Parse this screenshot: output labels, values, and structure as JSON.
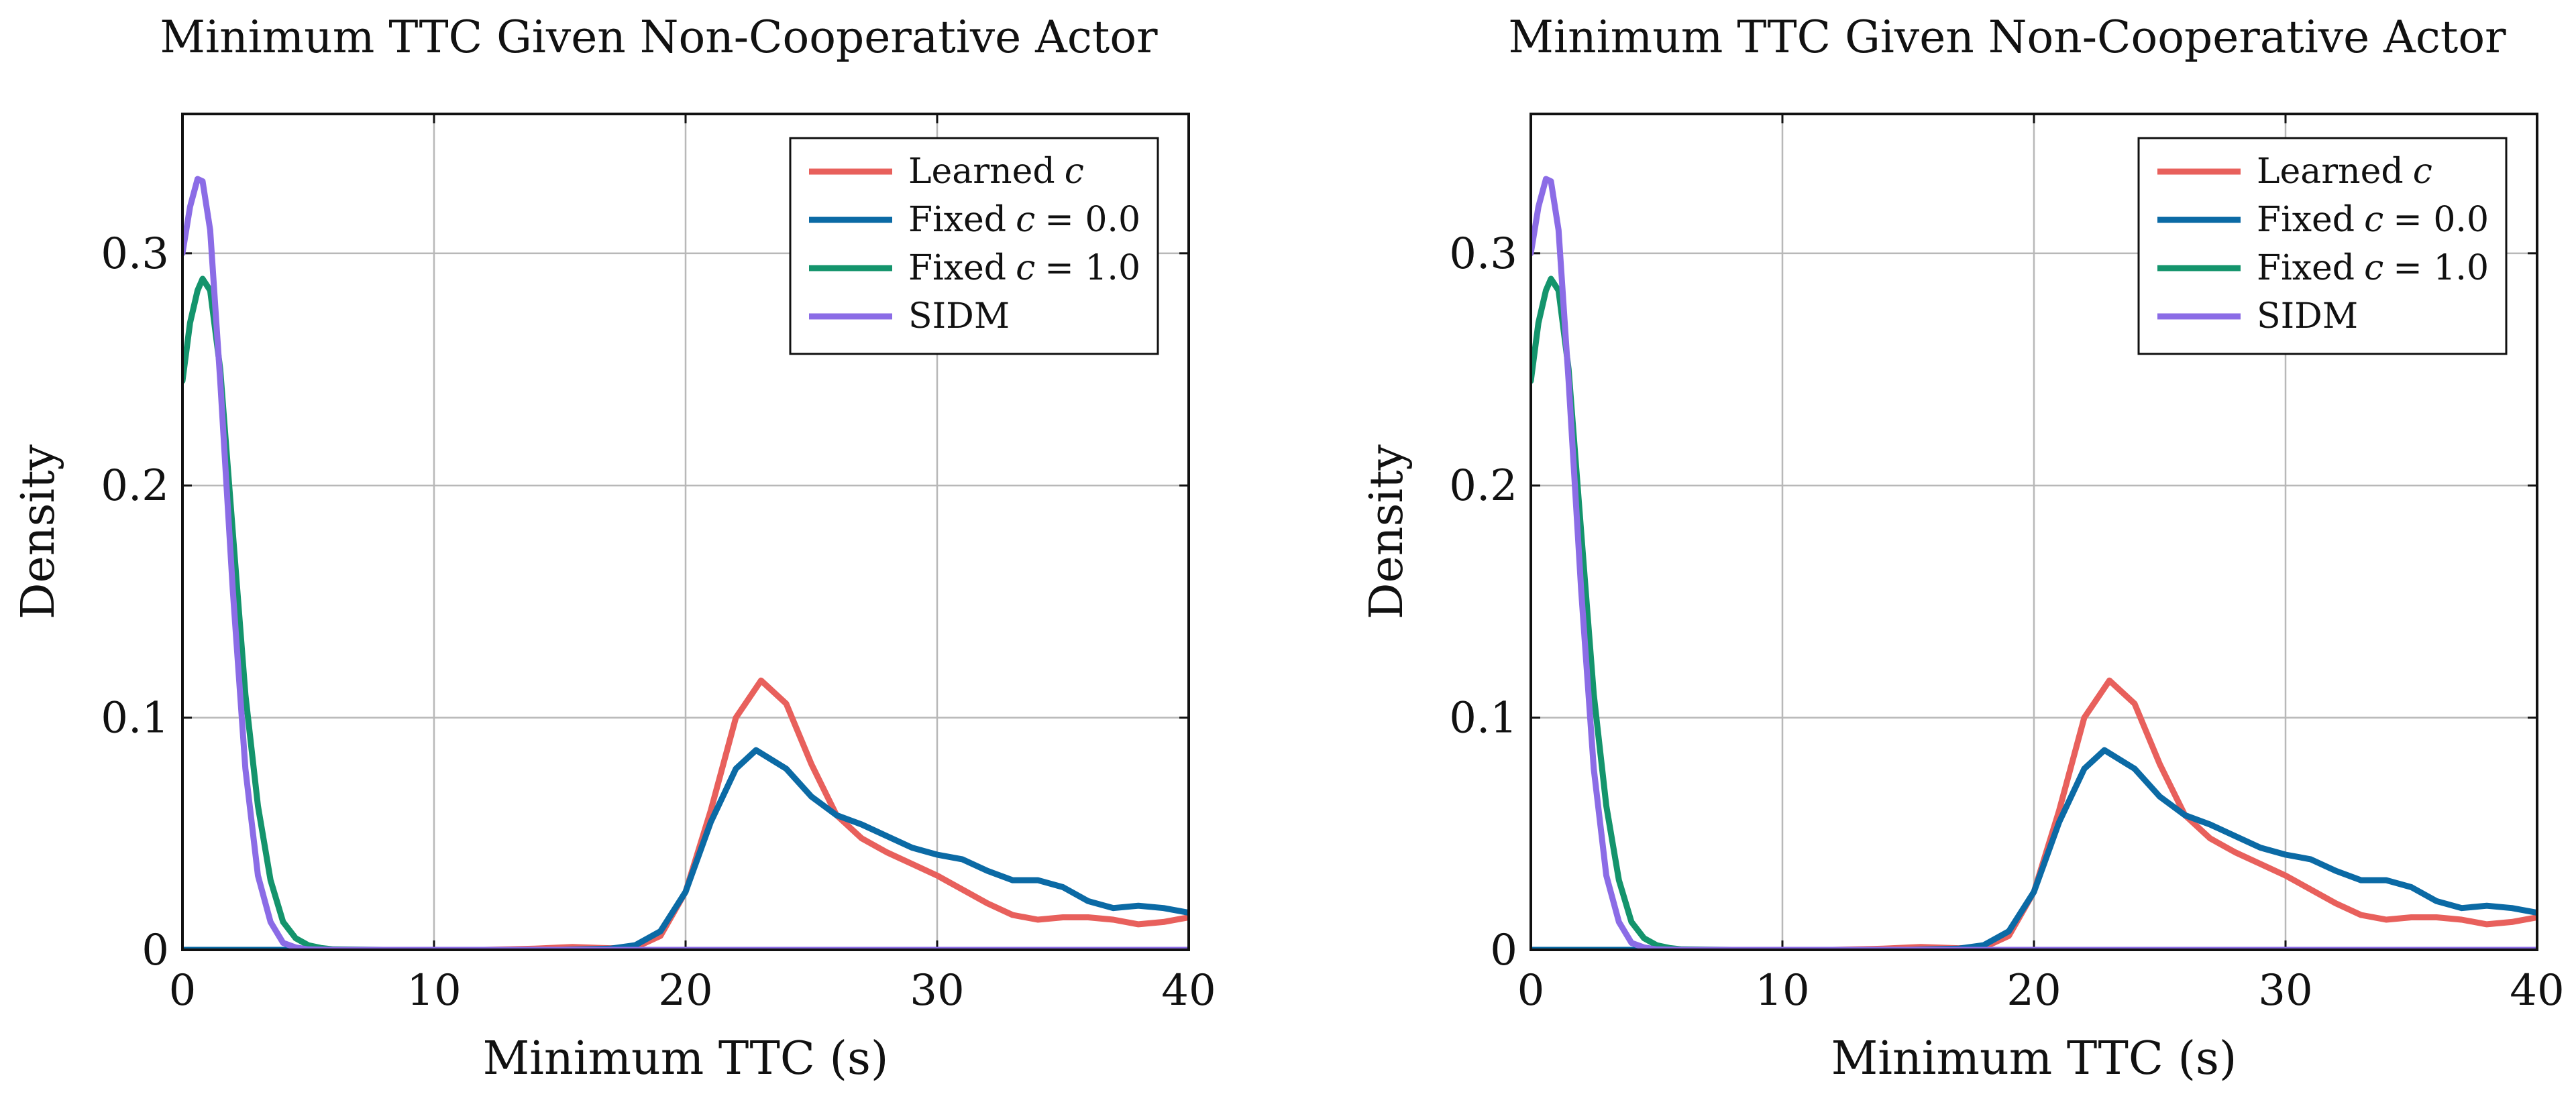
{
  "chart_data": [
    {
      "type": "line",
      "title": "Minimum TTC Given Non-Cooperative Actor",
      "xlabel": "Minimum TTC (s)",
      "ylabel": "Density",
      "xlim": [
        0,
        40
      ],
      "ylim": [
        0,
        0.36
      ],
      "xticks": [
        0,
        10,
        20,
        30,
        40
      ],
      "yticks": [
        0,
        0.1,
        0.2,
        0.3
      ],
      "xtick_labels": [
        "0",
        "10",
        "20",
        "30",
        "40"
      ],
      "ytick_labels": [
        "0",
        "0.1",
        "0.2",
        "0.3"
      ],
      "grid": true,
      "legend_position": "top-right",
      "series": [
        {
          "name": "Learned c",
          "label_main": "Learned",
          "label_var": "c",
          "label_eq": "",
          "color": "#e8605c",
          "points": [
            [
              0,
              0
            ],
            [
              10,
              0
            ],
            [
              12,
              0
            ],
            [
              14,
              0.0005
            ],
            [
              15.5,
              0.0012
            ],
            [
              17,
              0.0007
            ],
            [
              18,
              0.001
            ],
            [
              19,
              0.006
            ],
            [
              20,
              0.025
            ],
            [
              21,
              0.06
            ],
            [
              22,
              0.1
            ],
            [
              23,
              0.116
            ],
            [
              24,
              0.106
            ],
            [
              25,
              0.08
            ],
            [
              26,
              0.058
            ],
            [
              27,
              0.048
            ],
            [
              28,
              0.042
            ],
            [
              29,
              0.037
            ],
            [
              30,
              0.032
            ],
            [
              31,
              0.026
            ],
            [
              32,
              0.02
            ],
            [
              33,
              0.015
            ],
            [
              34,
              0.013
            ],
            [
              35,
              0.014
            ],
            [
              36,
              0.014
            ],
            [
              37,
              0.013
            ],
            [
              38,
              0.011
            ],
            [
              39,
              0.012
            ],
            [
              40,
              0.014
            ]
          ]
        },
        {
          "name": "Fixed c = 0.0",
          "label_main": "Fixed",
          "label_var": "c",
          "label_eq": "= 0.0",
          "color": "#0b6aa5",
          "points": [
            [
              0,
              0
            ],
            [
              10,
              0
            ],
            [
              15,
              0
            ],
            [
              17,
              0.0005
            ],
            [
              18,
              0.002
            ],
            [
              19,
              0.008
            ],
            [
              20,
              0.025
            ],
            [
              21,
              0.055
            ],
            [
              22,
              0.078
            ],
            [
              22.8,
              0.086
            ],
            [
              24,
              0.078
            ],
            [
              25,
              0.066
            ],
            [
              26,
              0.058
            ],
            [
              27,
              0.054
            ],
            [
              28,
              0.049
            ],
            [
              29,
              0.044
            ],
            [
              30,
              0.041
            ],
            [
              31,
              0.039
            ],
            [
              32,
              0.034
            ],
            [
              33,
              0.03
            ],
            [
              34,
              0.03
            ],
            [
              35,
              0.027
            ],
            [
              36,
              0.021
            ],
            [
              37,
              0.018
            ],
            [
              38,
              0.019
            ],
            [
              39,
              0.018
            ],
            [
              40,
              0.016
            ]
          ]
        },
        {
          "name": "Fixed c = 1.0",
          "label_main": "Fixed",
          "label_var": "c",
          "label_eq": "= 1.0",
          "color": "#14946c",
          "points": [
            [
              0,
              0.245
            ],
            [
              0.3,
              0.27
            ],
            [
              0.6,
              0.284
            ],
            [
              0.8,
              0.289
            ],
            [
              1.1,
              0.284
            ],
            [
              1.5,
              0.25
            ],
            [
              2,
              0.18
            ],
            [
              2.5,
              0.11
            ],
            [
              3,
              0.062
            ],
            [
              3.5,
              0.03
            ],
            [
              4,
              0.012
            ],
            [
              4.5,
              0.005
            ],
            [
              5,
              0.002
            ],
            [
              5.5,
              0.0008
            ],
            [
              6,
              0.0002
            ],
            [
              8,
              0
            ],
            [
              40,
              0
            ]
          ]
        },
        {
          "name": "SIDM",
          "label_main": "SIDM",
          "label_var": "",
          "label_eq": "",
          "color": "#8b6ce6",
          "points": [
            [
              0,
              0.3
            ],
            [
              0.3,
              0.32
            ],
            [
              0.6,
              0.332
            ],
            [
              0.8,
              0.331
            ],
            [
              1.1,
              0.31
            ],
            [
              1.5,
              0.245
            ],
            [
              2,
              0.155
            ],
            [
              2.5,
              0.078
            ],
            [
              3,
              0.032
            ],
            [
              3.5,
              0.012
            ],
            [
              4,
              0.003
            ],
            [
              4.5,
              0.001
            ],
            [
              5,
              0.0002
            ],
            [
              6,
              0
            ],
            [
              40,
              0
            ]
          ]
        }
      ]
    },
    {
      "type": "line",
      "title": "Minimum TTC Given Non-Cooperative Actor",
      "xlabel": "Minimum TTC (s)",
      "ylabel": "Density",
      "xlim": [
        0,
        40
      ],
      "ylim": [
        0,
        0.36
      ],
      "xticks": [
        0,
        10,
        20,
        30,
        40
      ],
      "yticks": [
        0,
        0.1,
        0.2,
        0.3
      ],
      "xtick_labels": [
        "0",
        "10",
        "20",
        "30",
        "40"
      ],
      "ytick_labels": [
        "0",
        "0.1",
        "0.2",
        "0.3"
      ],
      "grid": true,
      "legend_position": "top-right",
      "series": [
        {
          "name": "Learned c",
          "label_main": "Learned",
          "label_var": "c",
          "label_eq": "",
          "color": "#e8605c",
          "points": [
            [
              0,
              0
            ],
            [
              10,
              0
            ],
            [
              12,
              0
            ],
            [
              14,
              0.0005
            ],
            [
              15.5,
              0.0012
            ],
            [
              17,
              0.0007
            ],
            [
              18,
              0.001
            ],
            [
              19,
              0.006
            ],
            [
              20,
              0.025
            ],
            [
              21,
              0.06
            ],
            [
              22,
              0.1
            ],
            [
              23,
              0.116
            ],
            [
              24,
              0.106
            ],
            [
              25,
              0.08
            ],
            [
              26,
              0.058
            ],
            [
              27,
              0.048
            ],
            [
              28,
              0.042
            ],
            [
              29,
              0.037
            ],
            [
              30,
              0.032
            ],
            [
              31,
              0.026
            ],
            [
              32,
              0.02
            ],
            [
              33,
              0.015
            ],
            [
              34,
              0.013
            ],
            [
              35,
              0.014
            ],
            [
              36,
              0.014
            ],
            [
              37,
              0.013
            ],
            [
              38,
              0.011
            ],
            [
              39,
              0.012
            ],
            [
              40,
              0.014
            ]
          ]
        },
        {
          "name": "Fixed c = 0.0",
          "label_main": "Fixed",
          "label_var": "c",
          "label_eq": "= 0.0",
          "color": "#0b6aa5",
          "points": [
            [
              0,
              0
            ],
            [
              10,
              0
            ],
            [
              15,
              0
            ],
            [
              17,
              0.0005
            ],
            [
              18,
              0.002
            ],
            [
              19,
              0.008
            ],
            [
              20,
              0.025
            ],
            [
              21,
              0.055
            ],
            [
              22,
              0.078
            ],
            [
              22.8,
              0.086
            ],
            [
              24,
              0.078
            ],
            [
              25,
              0.066
            ],
            [
              26,
              0.058
            ],
            [
              27,
              0.054
            ],
            [
              28,
              0.049
            ],
            [
              29,
              0.044
            ],
            [
              30,
              0.041
            ],
            [
              31,
              0.039
            ],
            [
              32,
              0.034
            ],
            [
              33,
              0.03
            ],
            [
              34,
              0.03
            ],
            [
              35,
              0.027
            ],
            [
              36,
              0.021
            ],
            [
              37,
              0.018
            ],
            [
              38,
              0.019
            ],
            [
              39,
              0.018
            ],
            [
              40,
              0.016
            ]
          ]
        },
        {
          "name": "Fixed c = 1.0",
          "label_main": "Fixed",
          "label_var": "c",
          "label_eq": "= 1.0",
          "color": "#14946c",
          "points": [
            [
              0,
              0.245
            ],
            [
              0.3,
              0.27
            ],
            [
              0.6,
              0.284
            ],
            [
              0.8,
              0.289
            ],
            [
              1.1,
              0.284
            ],
            [
              1.5,
              0.25
            ],
            [
              2,
              0.18
            ],
            [
              2.5,
              0.11
            ],
            [
              3,
              0.062
            ],
            [
              3.5,
              0.03
            ],
            [
              4,
              0.012
            ],
            [
              4.5,
              0.005
            ],
            [
              5,
              0.002
            ],
            [
              5.5,
              0.0008
            ],
            [
              6,
              0.0002
            ],
            [
              8,
              0
            ],
            [
              40,
              0
            ]
          ]
        },
        {
          "name": "SIDM",
          "label_main": "SIDM",
          "label_var": "",
          "label_eq": "",
          "color": "#8b6ce6",
          "points": [
            [
              0,
              0.3
            ],
            [
              0.3,
              0.32
            ],
            [
              0.6,
              0.332
            ],
            [
              0.8,
              0.331
            ],
            [
              1.1,
              0.31
            ],
            [
              1.5,
              0.245
            ],
            [
              2,
              0.155
            ],
            [
              2.5,
              0.078
            ],
            [
              3,
              0.032
            ],
            [
              3.5,
              0.012
            ],
            [
              4,
              0.003
            ],
            [
              4.5,
              0.001
            ],
            [
              5,
              0.0002
            ],
            [
              6,
              0
            ],
            [
              40,
              0
            ]
          ]
        }
      ]
    }
  ]
}
